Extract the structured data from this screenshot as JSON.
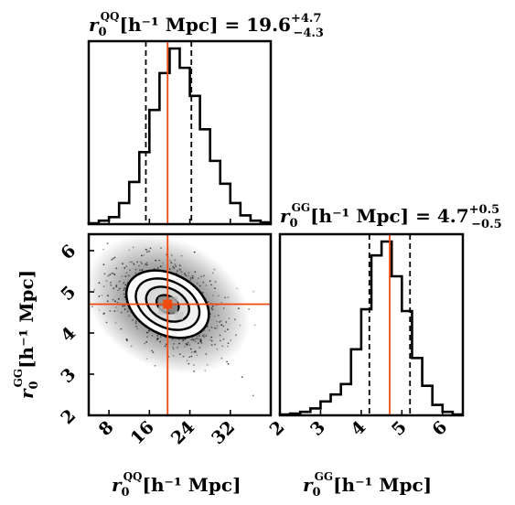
{
  "chart_data": [
    {
      "type": "histogram",
      "panel": "top-left",
      "title_prefix": "r",
      "title_sub": "0",
      "title_sup": "QQ",
      "title_unit": "[h⁻¹ Mpc] = 19.6",
      "title_plus": "+4.7",
      "title_minus": "−4.3",
      "x_range": [
        4,
        40
      ],
      "bin_edges": [
        4,
        6,
        8,
        10,
        12,
        14,
        16,
        18,
        20,
        22,
        24,
        26,
        28,
        30,
        32,
        34,
        36,
        38,
        40
      ],
      "counts": [
        0.5,
        2,
        4,
        12,
        24,
        41,
        65,
        86,
        100,
        89,
        73,
        54,
        36,
        23,
        12,
        5,
        2,
        1
      ],
      "quantiles": [
        15.3,
        19.6,
        24.3
      ],
      "truth": 19.6
    },
    {
      "type": "scatter-contour",
      "panel": "bottom-left",
      "x_range": [
        4,
        40
      ],
      "y_range": [
        2,
        6.4
      ],
      "x_ticks": [
        "8",
        "16",
        "24",
        "32"
      ],
      "x_tick_values": [
        8,
        16,
        24,
        32
      ],
      "y_ticks": [
        "2",
        "3",
        "4",
        "5",
        "6"
      ],
      "y_tick_values": [
        2,
        3,
        4,
        5,
        6
      ],
      "xlabel_prefix": "r",
      "xlabel_sub": "0",
      "xlabel_sup": "QQ",
      "xlabel_unit": "[h⁻¹ Mpc]",
      "ylabel_prefix": "r",
      "ylabel_sub": "0",
      "ylabel_sup": "GG",
      "ylabel_unit": "[h⁻¹ Mpc]",
      "center": [
        19.6,
        4.7
      ],
      "truth": [
        19.6,
        4.7
      ]
    },
    {
      "type": "histogram",
      "panel": "bottom-right",
      "title_prefix": "r",
      "title_sub": "0",
      "title_sup": "GG",
      "title_unit": "[h⁻¹ Mpc] = 4.7",
      "title_plus": "+0.5",
      "title_minus": "−0.5",
      "x_range": [
        2,
        6.5
      ],
      "x_ticks": [
        "2",
        "3",
        "4",
        "5",
        "6"
      ],
      "x_tick_values": [
        2,
        3,
        4,
        5,
        6
      ],
      "xlabel_prefix": "r",
      "xlabel_sub": "0",
      "xlabel_sup": "GG",
      "xlabel_unit": "[h⁻¹ Mpc]",
      "bin_edges": [
        2.0,
        2.25,
        2.5,
        2.75,
        3.0,
        3.25,
        3.5,
        3.75,
        4.0,
        4.25,
        4.5,
        4.75,
        5.0,
        5.25,
        5.5,
        5.75,
        6.0,
        6.25,
        6.5
      ],
      "counts": [
        0.5,
        1,
        2,
        4,
        8,
        12,
        18,
        38,
        61,
        92,
        100,
        80,
        60,
        33,
        17,
        6,
        2,
        0.5
      ],
      "quantiles": [
        4.2,
        4.7,
        5.2
      ],
      "truth": 4.7
    }
  ]
}
